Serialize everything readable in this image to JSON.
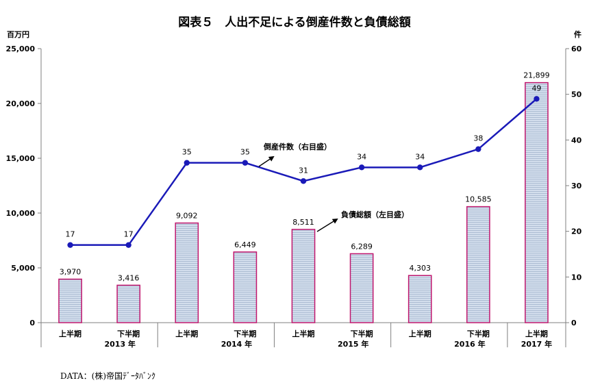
{
  "chart_data": {
    "type": "bar",
    "title": "図表５　人出不足による倒産件数と負債総額",
    "left_unit": "百万円",
    "right_unit": "件",
    "categories": [
      "上半期",
      "下半期",
      "上半期",
      "下半期",
      "上半期",
      "下半期",
      "上半期",
      "下半期",
      "上半期"
    ],
    "year_groups": [
      {
        "label": "2013 年",
        "start": 0,
        "count": 2
      },
      {
        "label": "2014 年",
        "start": 2,
        "count": 2
      },
      {
        "label": "2015 年",
        "start": 4,
        "count": 2
      },
      {
        "label": "2016 年",
        "start": 6,
        "count": 2
      },
      {
        "label": "2017 年",
        "start": 8,
        "count": 1
      }
    ],
    "series": [
      {
        "name": "負債総額（左目盛）",
        "type": "bar",
        "axis": "left",
        "values": [
          3970,
          3416,
          9092,
          6449,
          8511,
          6289,
          4303,
          10585,
          21899
        ],
        "labels": [
          "3,970",
          "3,416",
          "9,092",
          "6,449",
          "8,511",
          "6,289",
          "4,303",
          "10,585",
          "21,899"
        ]
      },
      {
        "name": "倒産件数（右目盛）",
        "type": "line",
        "axis": "right",
        "values": [
          17,
          17,
          35,
          35,
          31,
          34,
          34,
          38,
          49
        ],
        "labels": [
          "17",
          "17",
          "35",
          "35",
          "31",
          "34",
          "34",
          "38",
          "49"
        ]
      }
    ],
    "ylim_left": [
      0,
      25000
    ],
    "ylim_right": [
      0,
      60
    ],
    "yticks_left": [
      "0",
      "5,000",
      "10,000",
      "15,000",
      "20,000",
      "25,000"
    ],
    "yticks_right": [
      "0",
      "10",
      "20",
      "30",
      "40",
      "50",
      "60"
    ],
    "colors": {
      "bar_fill": "#c8d6e8",
      "bar_border": "#c0166d",
      "line": "#1a1ab8"
    },
    "legend": "annotations"
  },
  "source": "DATA：(株)帝国ﾃﾞｰﾀﾊﾞﾝｸ"
}
